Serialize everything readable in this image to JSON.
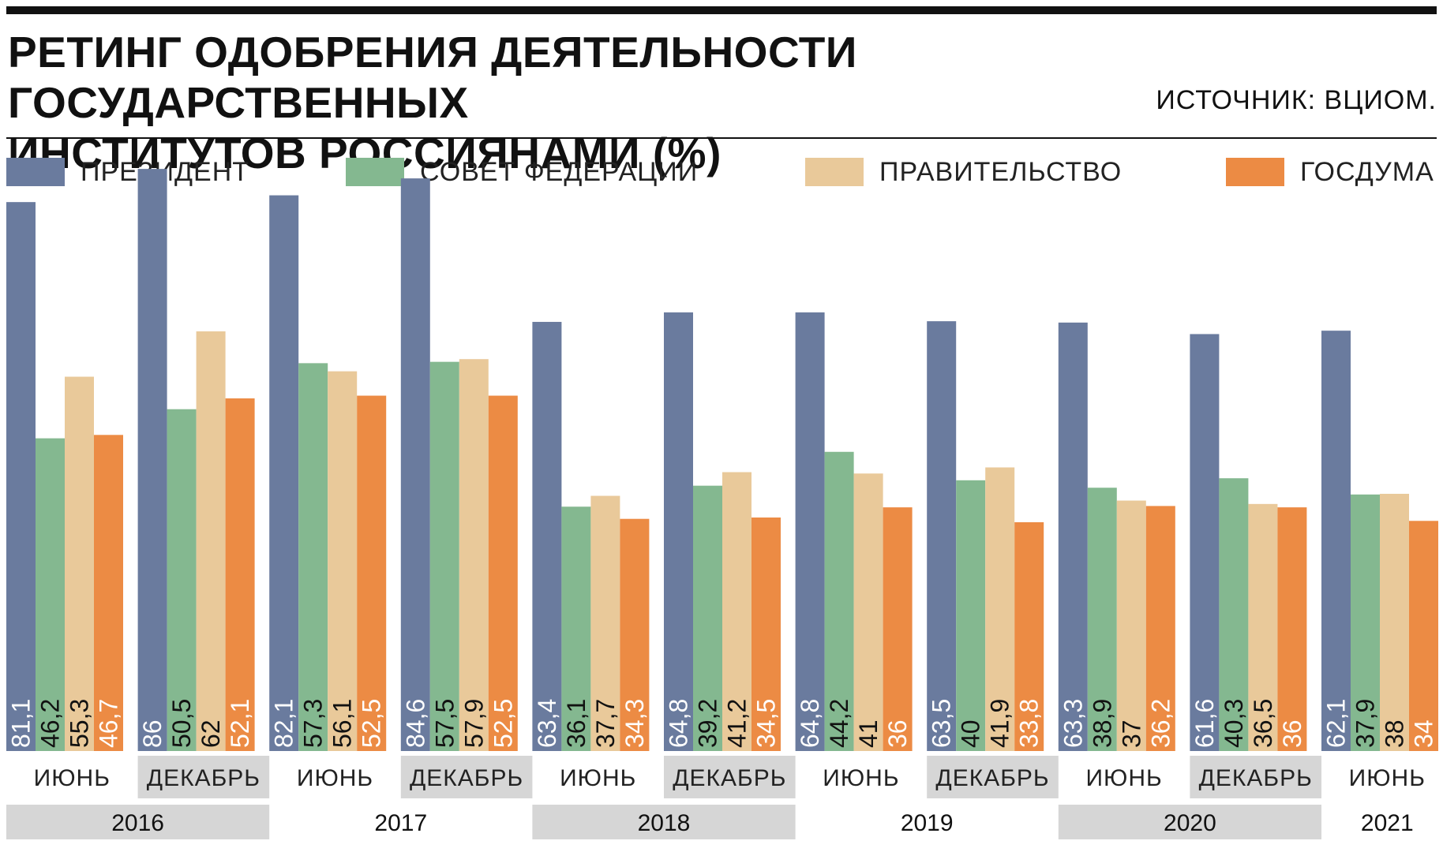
{
  "title_line1": "РЕТИНГ ОДОБРЕНИЯ ДЕЯТЕЛЬНОСТИ ГОСУДАРСТВЕННЫХ",
  "title_line2": "ИНСТИТУТОВ РОССИЯНАМИ (%)",
  "source": "ИСТОЧНИК: ВЦИОМ.",
  "colors": {
    "president": "#6A7B9E",
    "federation_council": "#84B890",
    "government": "#E9C99A",
    "duma": "#EC8B44",
    "label_light": "#ffffff",
    "label_dark": "#111111",
    "band_gray": "#d6d6d6"
  },
  "chart_data": {
    "type": "bar",
    "title": "РЕТИНГ ОДОБРЕНИЯ ДЕЯТЕЛЬНОСТИ ГОСУДАРСТВЕННЫХ ИНСТИТУТОВ РОССИЯНАМИ (%)",
    "categories": [
      "ИЮНЬ",
      "ДЕКАБРЬ",
      "ИЮНЬ",
      "ДЕКАБРЬ",
      "ИЮНЬ",
      "ДЕКАБРЬ",
      "ИЮНЬ",
      "ДЕКАБРЬ",
      "ИЮНЬ",
      "ДЕКАБРЬ",
      "ИЮНЬ"
    ],
    "years": [
      {
        "label": "2016",
        "count": 2
      },
      {
        "label": "2017",
        "count": 2
      },
      {
        "label": "2018",
        "count": 2
      },
      {
        "label": "2019",
        "count": 2
      },
      {
        "label": "2020",
        "count": 2
      },
      {
        "label": "2021",
        "count": 1
      }
    ],
    "series": [
      {
        "name": "ПРЕЗИДЕНТ",
        "values": [
          81.1,
          86,
          82.1,
          84.6,
          63.4,
          64.8,
          64.8,
          63.5,
          63.3,
          61.6,
          62.1
        ],
        "labels": [
          "81,1",
          "86",
          "82,1",
          "84,6",
          "63,4",
          "64,8",
          "64,8",
          "63,5",
          "63,3",
          "61,6",
          "62,1"
        ]
      },
      {
        "name": "СОВЕТ ФЕДЕРАЦИИ",
        "values": [
          46.2,
          50.5,
          57.3,
          57.5,
          36.1,
          39.2,
          44.2,
          40,
          38.9,
          40.3,
          37.9
        ],
        "labels": [
          "46,2",
          "50,5",
          "57,3",
          "57,5",
          "36,1",
          "39,2",
          "44,2",
          "40",
          "38,9",
          "40,3",
          "37,9"
        ]
      },
      {
        "name": "ПРАВИТЕЛЬСТВО",
        "values": [
          55.3,
          62,
          56.1,
          57.9,
          37.7,
          41.2,
          41,
          41.9,
          37,
          36.5,
          38
        ],
        "labels": [
          "55,3",
          "62",
          "56,1",
          "57,9",
          "37,7",
          "41,2",
          "41",
          "41,9",
          "37",
          "36,5",
          "38"
        ]
      },
      {
        "name": "ГОСДУМА",
        "values": [
          46.7,
          52.1,
          52.5,
          52.5,
          34.3,
          34.5,
          36,
          33.8,
          36.2,
          36,
          34
        ],
        "labels": [
          "46,7",
          "52,1",
          "52,5",
          "52,5",
          "34,3",
          "34,5",
          "36",
          "33,8",
          "36,2",
          "36",
          "34"
        ]
      }
    ],
    "xlabel": "",
    "ylabel": "%",
    "ylim": [
      0,
      100
    ],
    "grid": false,
    "legend_position": "top"
  }
}
